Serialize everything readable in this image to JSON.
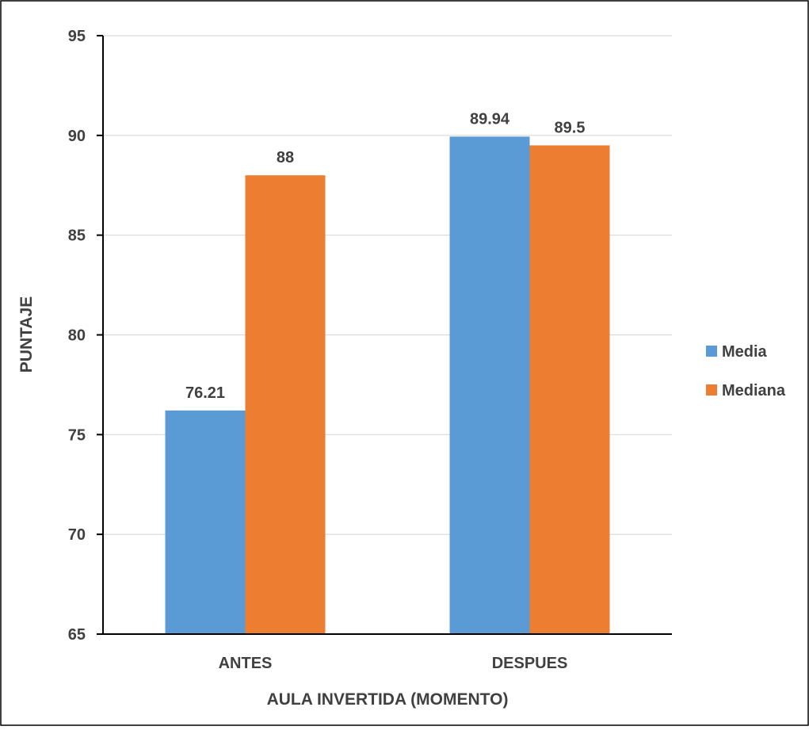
{
  "chart_data": {
    "type": "bar",
    "categories": [
      "ANTES",
      "DESPUES"
    ],
    "series": [
      {
        "name": "Media",
        "values": [
          76.21,
          89.94
        ],
        "labels": [
          "76.21",
          "89.94"
        ],
        "color": "#5B9BD5"
      },
      {
        "name": "Mediana",
        "values": [
          88,
          89.5
        ],
        "labels": [
          "88",
          "89.5"
        ],
        "color": "#ED7D31"
      }
    ],
    "xlabel": "AULA INVERTIDA (MOMENTO)",
    "ylabel": "PUNTAJE",
    "ylim": [
      65,
      95
    ],
    "yticks": [
      65,
      70,
      75,
      80,
      85,
      90,
      95
    ],
    "grid": true,
    "legend": "right"
  }
}
